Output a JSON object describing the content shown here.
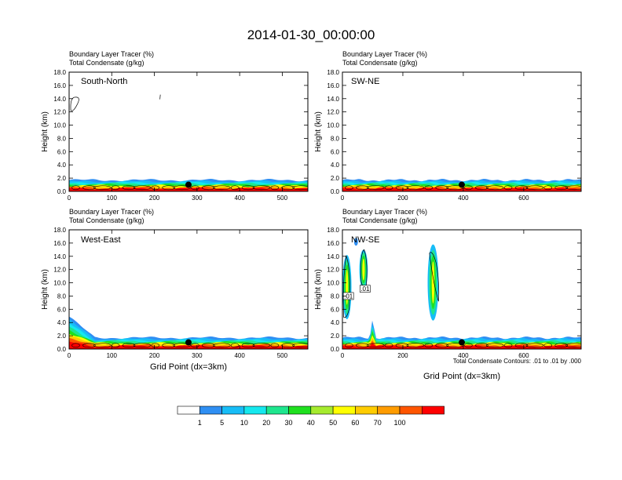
{
  "title": "2014-01-30_00:00:00",
  "chart_data": [
    {
      "type": "heatmap",
      "name": "South-North",
      "label_left_1": "Boundary Layer Tracer   (%)",
      "label_left_2": "Total Condensate   (g/kg)",
      "panel_label": "South-North",
      "ylabel": "Height (km)",
      "xlabel": "",
      "xlim": [
        0,
        560
      ],
      "ylim": [
        0,
        18
      ],
      "xticks": [
        0,
        100,
        200,
        300,
        400,
        500
      ],
      "yticks": [
        0.0,
        2.0,
        4.0,
        6.0,
        8.0,
        10.0,
        12.0,
        14.0,
        16.0,
        18.0
      ],
      "marker": {
        "x": 280,
        "y": 1.0
      }
    },
    {
      "type": "heatmap",
      "name": "SW-NE",
      "label_left_1": "Boundary Layer Tracer   (%)",
      "label_left_2": "Total Condensate   (g/kg)",
      "panel_label": "SW-NE",
      "ylabel": "Height (km)",
      "xlabel": "",
      "xlim": [
        0,
        790
      ],
      "ylim": [
        0,
        18
      ],
      "xticks": [
        0,
        200,
        400,
        600
      ],
      "yticks": [
        0.0,
        2.0,
        4.0,
        6.0,
        8.0,
        10.0,
        12.0,
        14.0,
        16.0,
        18.0
      ],
      "marker": {
        "x": 395,
        "y": 1.0
      }
    },
    {
      "type": "heatmap",
      "name": "West-East",
      "label_left_1": "Boundary Layer Tracer   (%)",
      "label_left_2": "Total Condensate   (g/kg)",
      "panel_label": "West-East",
      "ylabel": "Height (km)",
      "xlabel": "Grid Point (dx=3km)",
      "xlim": [
        0,
        560
      ],
      "ylim": [
        0,
        18
      ],
      "xticks": [
        0,
        100,
        200,
        300,
        400,
        500
      ],
      "yticks": [
        0.0,
        2.0,
        4.0,
        6.0,
        8.0,
        10.0,
        12.0,
        14.0,
        16.0,
        18.0
      ],
      "marker": {
        "x": 280,
        "y": 1.0
      }
    },
    {
      "type": "heatmap",
      "name": "NW-SE",
      "label_left_1": "Boundary Layer Tracer   (%)",
      "label_left_2": "Total Condensate   (g/kg)",
      "panel_label": "NW-SE",
      "ylabel": "Height (km)",
      "xlabel": "Grid Point (dx=3km)",
      "xlim": [
        0,
        790
      ],
      "ylim": [
        0,
        18
      ],
      "xticks": [
        0,
        200,
        400,
        600
      ],
      "yticks": [
        0.0,
        2.0,
        4.0,
        6.0,
        8.0,
        10.0,
        12.0,
        14.0,
        16.0,
        18.0
      ],
      "marker": {
        "x": 395,
        "y": 1.0
      },
      "contour_labels": [
        {
          "text": ".01",
          "x": 20,
          "y": 8.0
        },
        {
          "text": ".01",
          "x": 75,
          "y": 9.1
        }
      ],
      "footnote": "Total Condensate Contours: .01 to .01 by .000"
    }
  ],
  "colorbar": {
    "colors": [
      "#ffffff",
      "#2f8ff3",
      "#17bdf7",
      "#15e8ee",
      "#1ee68e",
      "#1fe01f",
      "#a6eb2e",
      "#ffff00",
      "#ffcc00",
      "#ff9c00",
      "#ff5500",
      "#ff0000"
    ],
    "labels": [
      "1",
      "5",
      "10",
      "20",
      "30",
      "40",
      "50",
      "60",
      "70",
      "100"
    ]
  }
}
